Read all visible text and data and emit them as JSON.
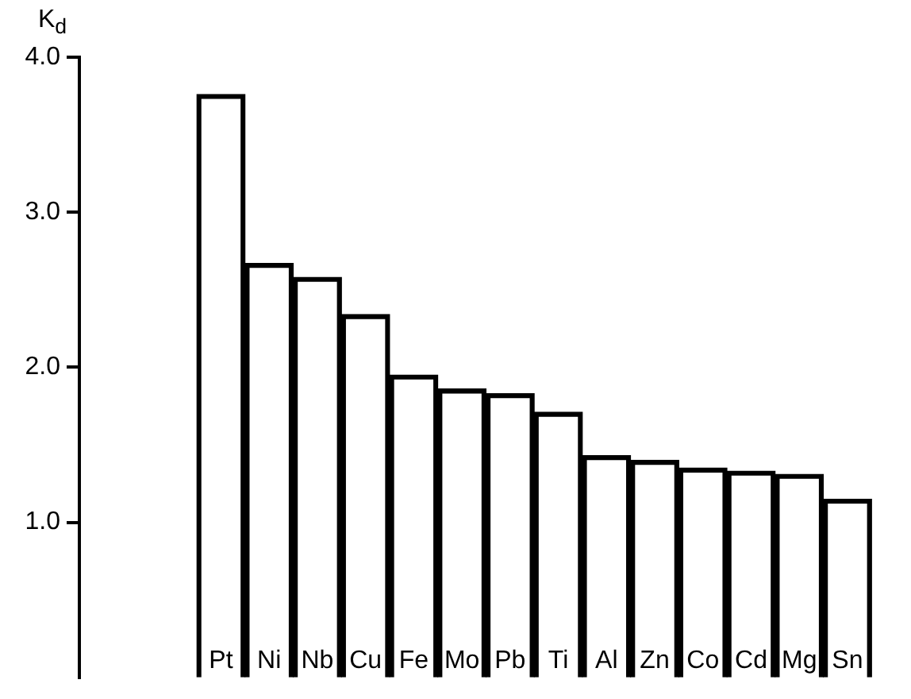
{
  "chart_data": {
    "type": "bar",
    "ylabel": "K$_{d}$",
    "categories": [
      "Pt",
      "Ni",
      "Nb",
      "Cu",
      "Fe",
      "Mo",
      "Pb",
      "Ti",
      "Al",
      "Zn",
      "Co",
      "Cd",
      "Mg",
      "Sn"
    ],
    "values": [
      3.76,
      2.67,
      2.58,
      2.34,
      1.95,
      1.86,
      1.83,
      1.71,
      1.43,
      1.4,
      1.35,
      1.33,
      1.31,
      1.15
    ],
    "color": "#000000",
    "ylim": [
      0,
      4
    ],
    "yticks": [
      {
        "value": 1,
        "label": "1.0"
      },
      {
        "value": 2,
        "label": "2.0"
      },
      {
        "value": 3,
        "label": "3.0"
      },
      {
        "value": 4,
        "label": "4.0"
      }
    ],
    "grid": false,
    "legend": false
  }
}
